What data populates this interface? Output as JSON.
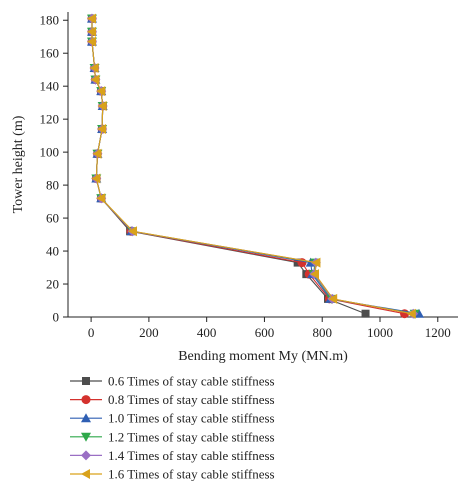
{
  "chart_data": {
    "type": "line",
    "xlabel": "Bending moment My (MN.m)",
    "ylabel": "Tower height (m)",
    "xlim": [
      -80,
      1270
    ],
    "ylim": [
      0,
      185
    ],
    "xticks": [
      0,
      200,
      400,
      600,
      800,
      1000,
      1200
    ],
    "yticks": [
      0,
      20,
      40,
      60,
      80,
      100,
      120,
      140,
      160,
      180
    ],
    "grid": false,
    "legend_position": "bottom",
    "series": [
      {
        "name": "0.6 Times of stay cable stiffness",
        "color": "#4d4d4d",
        "marker": "square",
        "points": [
          [
            950,
            2
          ],
          [
            820,
            11
          ],
          [
            745,
            26
          ],
          [
            715,
            33
          ],
          [
            135,
            52
          ],
          [
            35,
            72
          ],
          [
            18,
            84
          ],
          [
            22,
            99
          ],
          [
            38,
            114
          ],
          [
            40,
            128
          ],
          [
            35,
            137
          ],
          [
            15,
            144
          ],
          [
            12,
            151
          ],
          [
            3,
            167
          ],
          [
            3,
            173
          ],
          [
            3,
            181
          ]
        ]
      },
      {
        "name": "0.8 Times of stay cable stiffness",
        "color": "#d4322e",
        "marker": "circle",
        "points": [
          [
            1085,
            2
          ],
          [
            825,
            11
          ],
          [
            755,
            26
          ],
          [
            730,
            33
          ],
          [
            138,
            52
          ],
          [
            35,
            72
          ],
          [
            18,
            84
          ],
          [
            22,
            99
          ],
          [
            38,
            114
          ],
          [
            40,
            128
          ],
          [
            35,
            137
          ],
          [
            15,
            144
          ],
          [
            12,
            151
          ],
          [
            3,
            167
          ],
          [
            3,
            173
          ],
          [
            3,
            181
          ]
        ]
      },
      {
        "name": "1.0 Times of stay cable stiffness",
        "color": "#2f5fb3",
        "marker": "triangle-up",
        "points": [
          [
            1135,
            2
          ],
          [
            828,
            11
          ],
          [
            765,
            26
          ],
          [
            760,
            33
          ],
          [
            140,
            52
          ],
          [
            35,
            72
          ],
          [
            18,
            84
          ],
          [
            22,
            99
          ],
          [
            38,
            114
          ],
          [
            40,
            128
          ],
          [
            35,
            137
          ],
          [
            15,
            144
          ],
          [
            12,
            151
          ],
          [
            3,
            167
          ],
          [
            3,
            173
          ],
          [
            3,
            181
          ]
        ]
      },
      {
        "name": "1.2 Times of stay cable stiffness",
        "color": "#2ea84a",
        "marker": "triangle-down",
        "points": [
          [
            1120,
            2
          ],
          [
            832,
            11
          ],
          [
            770,
            26
          ],
          [
            775,
            33
          ],
          [
            142,
            52
          ],
          [
            35,
            72
          ],
          [
            18,
            84
          ],
          [
            22,
            99
          ],
          [
            38,
            114
          ],
          [
            40,
            128
          ],
          [
            35,
            137
          ],
          [
            15,
            144
          ],
          [
            12,
            151
          ],
          [
            3,
            167
          ],
          [
            3,
            173
          ],
          [
            3,
            181
          ]
        ]
      },
      {
        "name": "1.4 Times of stay cable stiffness",
        "color": "#9a6fc4",
        "marker": "diamond",
        "points": [
          [
            1115,
            2
          ],
          [
            835,
            11
          ],
          [
            772,
            26
          ],
          [
            778,
            33
          ],
          [
            143,
            52
          ],
          [
            35,
            72
          ],
          [
            18,
            84
          ],
          [
            22,
            99
          ],
          [
            38,
            114
          ],
          [
            40,
            128
          ],
          [
            35,
            137
          ],
          [
            15,
            144
          ],
          [
            12,
            151
          ],
          [
            3,
            167
          ],
          [
            3,
            173
          ],
          [
            3,
            181
          ]
        ]
      },
      {
        "name": "1.6 Times of stay cable stiffness",
        "color": "#d9a21b",
        "marker": "triangle-left",
        "points": [
          [
            1110,
            2
          ],
          [
            838,
            11
          ],
          [
            775,
            26
          ],
          [
            780,
            33
          ],
          [
            145,
            52
          ],
          [
            35,
            72
          ],
          [
            18,
            84
          ],
          [
            22,
            99
          ],
          [
            38,
            114
          ],
          [
            40,
            128
          ],
          [
            35,
            137
          ],
          [
            15,
            144
          ],
          [
            12,
            151
          ],
          [
            3,
            167
          ],
          [
            3,
            173
          ],
          [
            3,
            181
          ]
        ]
      }
    ]
  }
}
